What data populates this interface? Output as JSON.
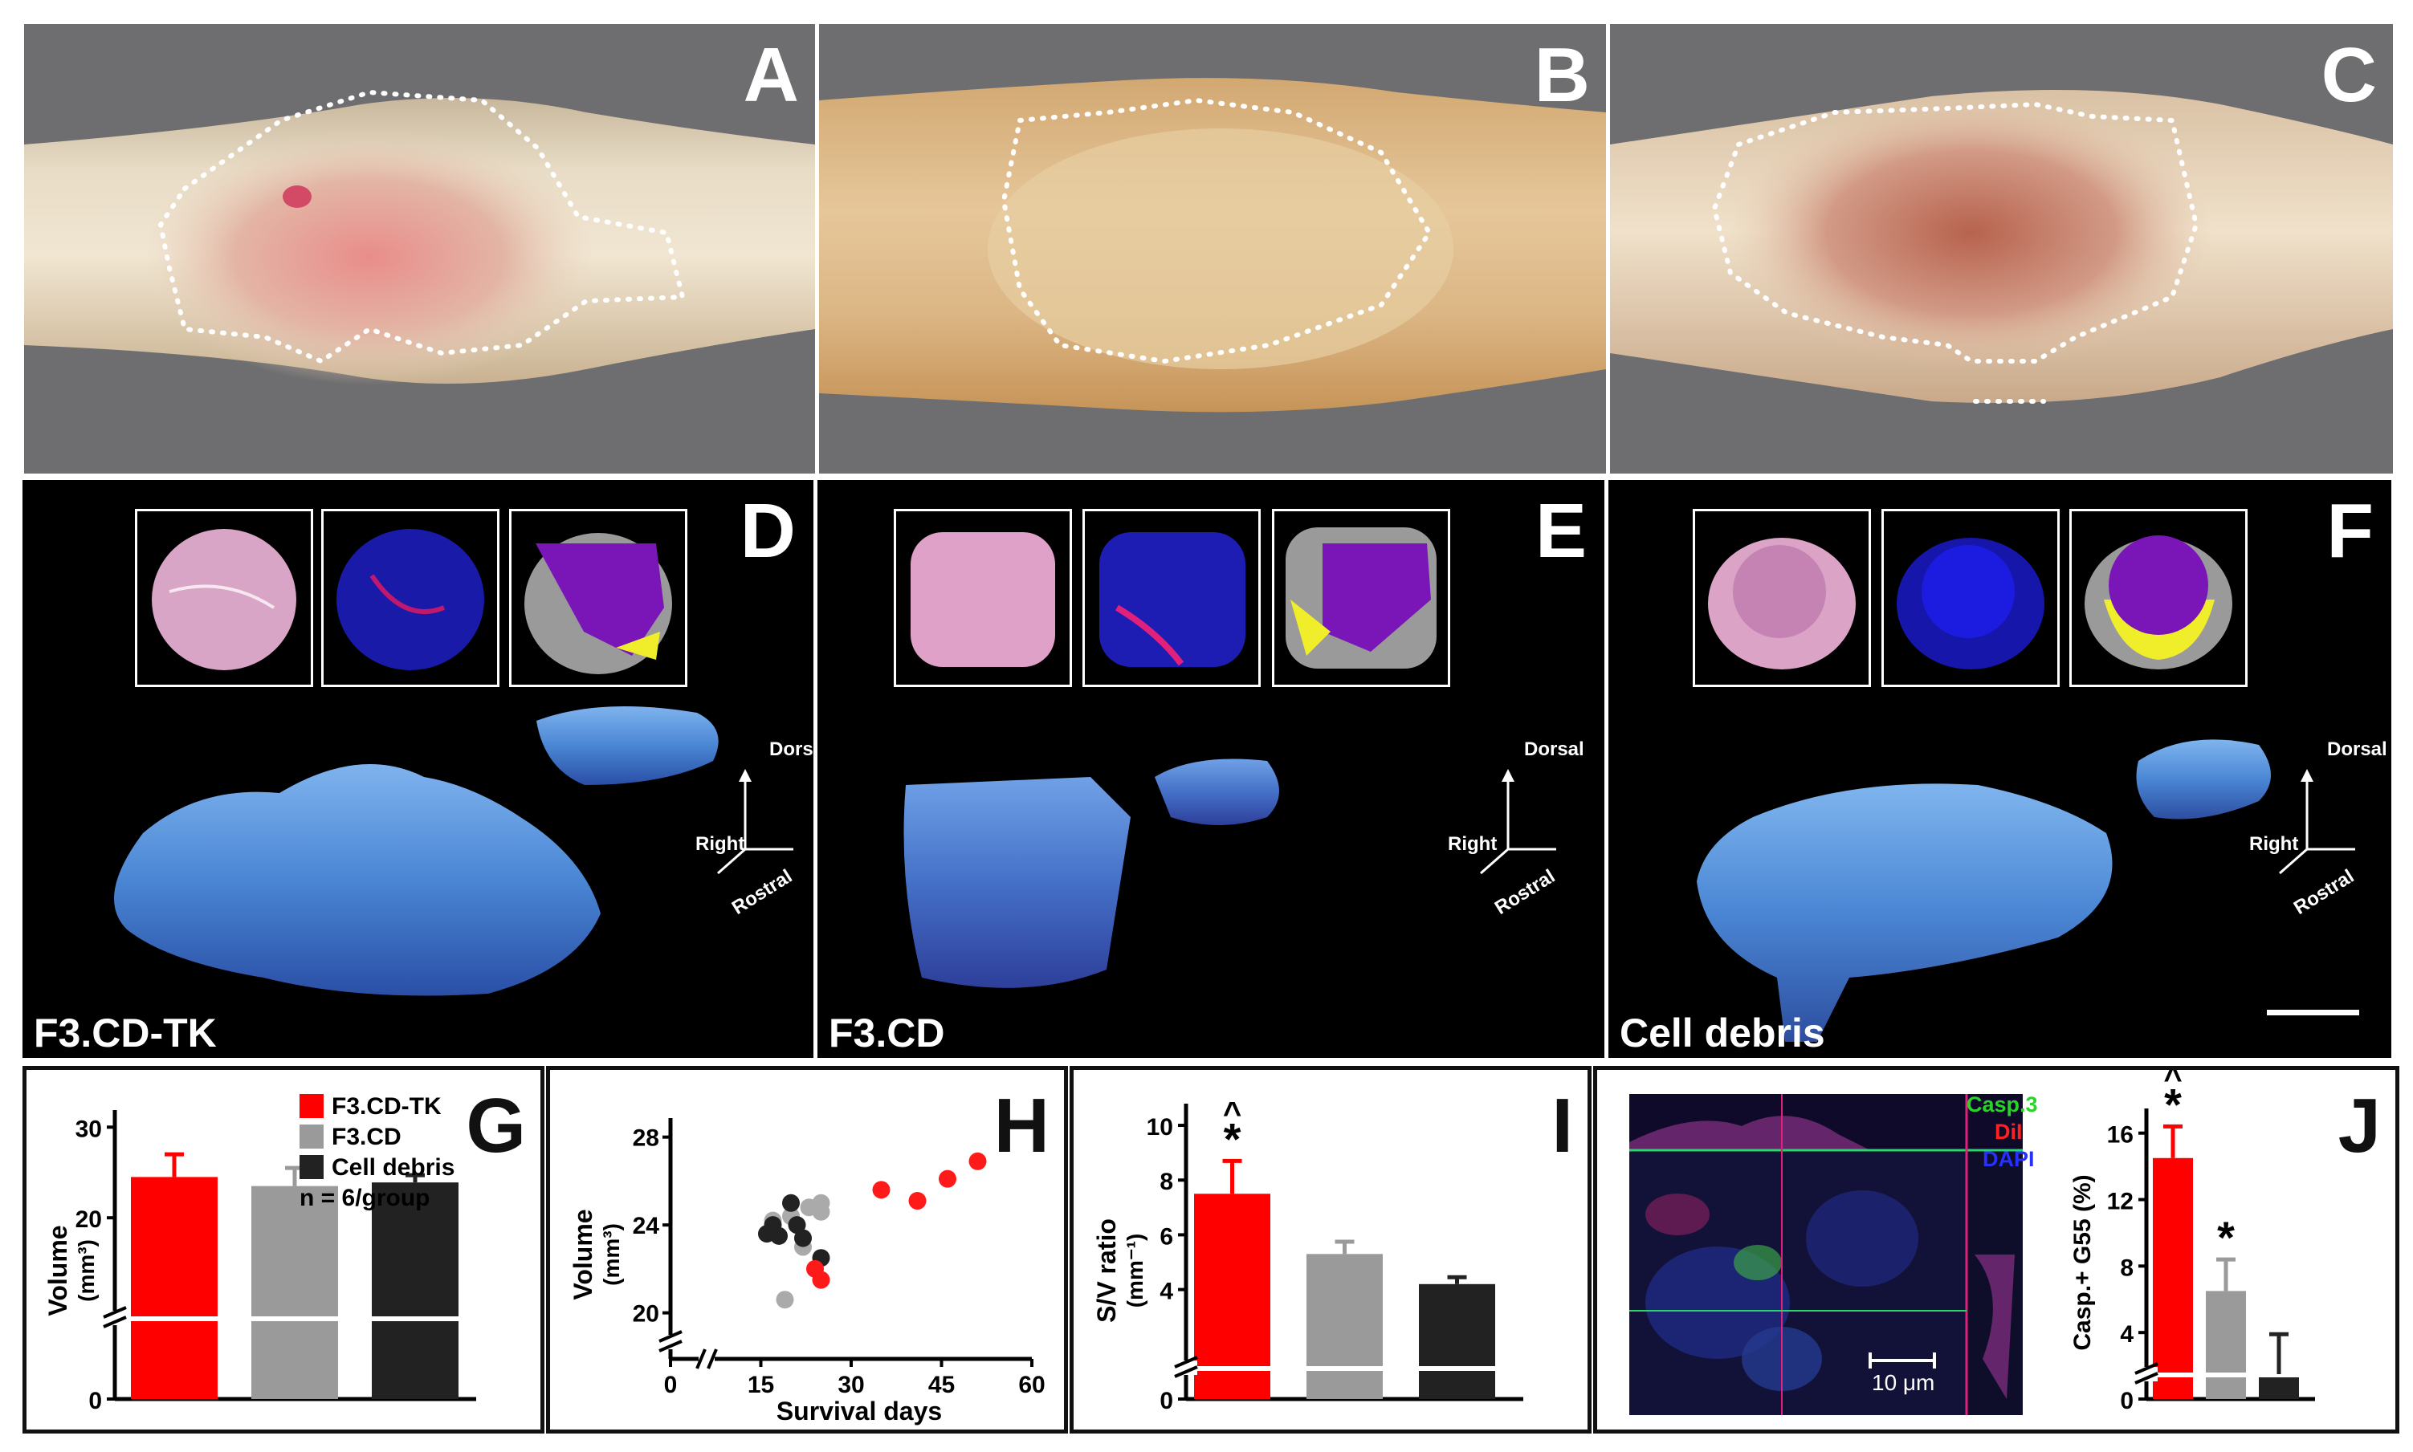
{
  "panels": {
    "A": "A",
    "B": "B",
    "C": "C",
    "D": "D",
    "E": "E",
    "F": "F",
    "G": "G",
    "H": "H",
    "I": "I",
    "J": "J"
  },
  "groups": {
    "d": "F3.CD-TK",
    "e": "F3.CD",
    "f": "Cell debris"
  },
  "orientation": {
    "dorsal": "Dorsal",
    "right": "Right",
    "rostral": "Rostral"
  },
  "panel_g": {
    "legend": [
      "F3.CD-TK",
      "F3.CD",
      "Cell debris"
    ],
    "n_label": "n = 6/group",
    "ylabel": "Volume",
    "yunit": "(mm³)"
  },
  "panel_h": {
    "ylabel": "Volume",
    "yunit": "(mm³)",
    "xlabel": "Survival days"
  },
  "panel_i": {
    "ylabel": "S/V ratio",
    "yunit": "(mm⁻¹)"
  },
  "panel_j": {
    "channels": [
      "Casp.3",
      "DiI",
      "DAPI"
    ],
    "scale_label": "10 μm",
    "ylabel": "Casp.+ G55 (%)"
  },
  "colors": {
    "f3cdtk": "#ff0000",
    "f3cd": "#9a9a9a",
    "debris": "#222222",
    "dot_gray": "#aaaaaa",
    "dot_black": "#222222",
    "dot_red": "#ff1a1a"
  },
  "chart_data": [
    {
      "id": "G",
      "type": "bar",
      "categories": [
        "F3.CD-TK",
        "F3.CD",
        "Cell debris"
      ],
      "values": [
        24.5,
        23.5,
        23.9
      ],
      "errors": [
        2.5,
        2.0,
        0.8
      ],
      "ylabel": "Volume (mm³)",
      "yticks": [
        0,
        20,
        30
      ],
      "ylim": [
        0,
        31
      ],
      "axis_break": true
    },
    {
      "id": "H",
      "type": "scatter",
      "xlabel": "Survival days",
      "ylabel": "Volume (mm³)",
      "xticks": [
        0,
        15,
        30,
        45,
        60
      ],
      "yticks": [
        20,
        24,
        28
      ],
      "xlim": [
        0,
        60
      ],
      "ylim": [
        19,
        28.5
      ],
      "axis_break": true,
      "series": [
        {
          "color": "gray",
          "points": [
            [
              17,
              24.2
            ],
            [
              19,
              20.6
            ],
            [
              20,
              24.4
            ],
            [
              22,
              23.0
            ],
            [
              23,
              24.8
            ],
            [
              25,
              25.0
            ],
            [
              25,
              24.6
            ]
          ]
        },
        {
          "color": "black",
          "points": [
            [
              16,
              23.6
            ],
            [
              17,
              24.0
            ],
            [
              18,
              23.5
            ],
            [
              20,
              25.0
            ],
            [
              21,
              24.0
            ],
            [
              22,
              23.4
            ],
            [
              25,
              22.5
            ]
          ]
        },
        {
          "color": "red",
          "points": [
            [
              24,
              22.0
            ],
            [
              25,
              21.5
            ],
            [
              35,
              25.6
            ],
            [
              41,
              25.1
            ],
            [
              46,
              26.1
            ],
            [
              51,
              26.9
            ]
          ]
        }
      ]
    },
    {
      "id": "I",
      "type": "bar",
      "categories": [
        "F3.CD-TK",
        "F3.CD",
        "Cell debris"
      ],
      "values": [
        7.5,
        5.3,
        4.2
      ],
      "errors": [
        1.2,
        0.45,
        0.25
      ],
      "annotations": [
        "*^",
        "",
        ""
      ],
      "ylabel": "S/V ratio (mm⁻¹)",
      "yticks": [
        0,
        4,
        6,
        8,
        10
      ],
      "ylim": [
        0,
        10.5
      ],
      "axis_break": true
    },
    {
      "id": "J",
      "type": "bar",
      "categories": [
        "F3.CD-TK",
        "F3.CD",
        "Cell debris"
      ],
      "values": [
        14.5,
        6.5,
        1.5
      ],
      "errors": [
        1.9,
        1.9,
        2.4
      ],
      "annotations": [
        "*^",
        "*",
        ""
      ],
      "ylabel": "Casp.+ G55 (%)",
      "yticks": [
        0,
        4,
        8,
        12,
        16
      ],
      "ylim": [
        0,
        17
      ],
      "axis_break": true
    }
  ]
}
